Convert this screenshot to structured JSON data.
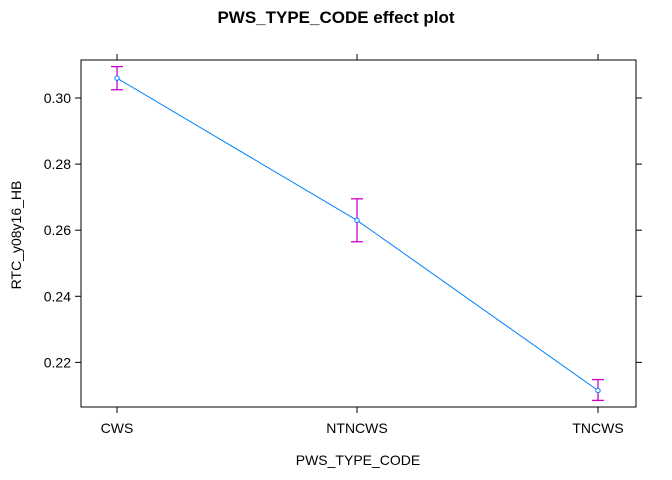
{
  "chart_data": {
    "type": "line",
    "title": "PWS_TYPE_CODE effect plot",
    "xlabel": "PWS_TYPE_CODE",
    "ylabel": "RTC_y08y16_HB",
    "categories": [
      "CWS",
      "NTNCWS",
      "TNCWS"
    ],
    "series": [
      {
        "values": [
          0.306,
          0.263,
          0.2115
        ],
        "lower": [
          0.3025,
          0.2565,
          0.2085
        ],
        "upper": [
          0.3095,
          0.2695,
          0.2148
        ]
      }
    ],
    "ylim": [
      0.2065,
      0.3115
    ],
    "yticks": [
      0.22,
      0.24,
      0.26,
      0.28,
      0.3
    ],
    "ytick_labels": [
      "0.22",
      "0.24",
      "0.26",
      "0.28",
      "0.30"
    ],
    "grid": false,
    "legend": "none",
    "colors": {
      "line": "#0080ff",
      "errorbar": "#cc00cc",
      "axis": "#000000"
    }
  }
}
